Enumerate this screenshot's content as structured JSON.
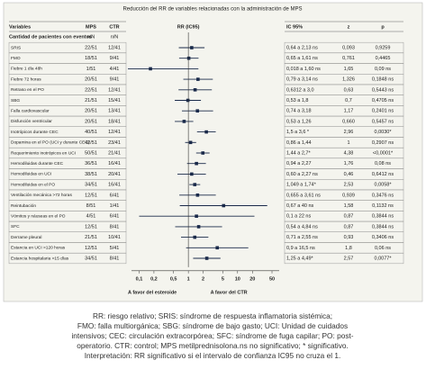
{
  "title": "Reducción del RR de variables relacionadas con la administración de MPS",
  "columns": [
    "Variables",
    "MPS",
    "CTR",
    "RR (IC95)",
    "IC 95%",
    "z",
    "p"
  ],
  "subheader": {
    "label": "Cantidad de pacientes con eventos",
    "mps": "n/N",
    "ctr": "n/N"
  },
  "rows": [
    {
      "label": "SRIS",
      "mps": "22/51",
      "ctr": "12/41",
      "ci_text": "0,64 a 2,13 ns",
      "z": "0,093",
      "p": "0,9259",
      "rr": 1.17,
      "lo": 0.64,
      "hi": 2.13
    },
    {
      "label": "FMO",
      "mps": "18/51",
      "ctr": "9/41",
      "ci_text": "0,65 a 1,61 ns",
      "z": "0,761",
      "p": "0,4465",
      "rr": 1.02,
      "lo": 0.65,
      "hi": 1.61
    },
    {
      "label": "Fiebre 1 día 48h",
      "mps": "1/51",
      "ctr": "4/41",
      "ci_text": "0,018 a 1,60 ns",
      "z": "1,65",
      "p": "0,09 ns",
      "rr": 0.17,
      "lo": 0.018,
      "hi": 1.6
    },
    {
      "label": "Fiebre 72 horas",
      "mps": "20/51",
      "ctr": "9/41",
      "ci_text": "0,79 a 3,14 ns",
      "z": "1,326",
      "p": "0,1848 ns",
      "rr": 1.57,
      "lo": 0.79,
      "hi": 3.14
    },
    {
      "label": "Retraso en el PO",
      "mps": "22/51",
      "ctr": "12/41",
      "ci_text": "0,6312 a 3,0",
      "z": "0,63",
      "p": "0,5443 ns",
      "rr": 1.37,
      "lo": 0.6312,
      "hi": 3.0
    },
    {
      "label": "SBG",
      "mps": "21/51",
      "ctr": "15/41",
      "ci_text": "0,53 a 1,8",
      "z": "0,7",
      "p": "0,4705 ns",
      "rr": 0.98,
      "lo": 0.53,
      "hi": 1.8
    },
    {
      "label": "Falla cardiovascular",
      "mps": "20/51",
      "ctr": "13/41",
      "ci_text": "0,74 a 3,18",
      "z": "1,17",
      "p": "0,2401 ns",
      "rr": 1.53,
      "lo": 0.74,
      "hi": 3.18
    },
    {
      "label": "Disfunción ventricular",
      "mps": "20/51",
      "ctr": "18/41",
      "ci_text": "0,53 a 1,26",
      "z": "0,660",
      "p": "0,5457 ns",
      "rr": 0.82,
      "lo": 0.53,
      "hi": 1.26
    },
    {
      "label": "Inotrópicos durante CEC",
      "mps": "40/51",
      "ctr": "12/41",
      "ci_text": "1,5 a 3,6 *",
      "z": "2,96",
      "p": "0,0030*",
      "rr": 2.32,
      "lo": 1.5,
      "hi": 3.6
    },
    {
      "label": "Dopamina en el PO (UCI y durante CEC)",
      "mps": "42/51",
      "ctr": "23/41",
      "ci_text": "0,86 a 1,44",
      "z": "1",
      "p": "0,2907 ns",
      "rr": 1.11,
      "lo": 0.86,
      "hi": 1.44
    },
    {
      "label": "Requerimiento inotrópicos en UCI",
      "mps": "50/51",
      "ctr": "21/41",
      "ci_text": "1,44 a 2,7*",
      "z": "4,38",
      "p": "<0,0001*",
      "rr": 1.97,
      "lo": 1.44,
      "hi": 2.7
    },
    {
      "label": "Hemodiluidas durante CEC",
      "mps": "36/51",
      "ctr": "16/41",
      "ci_text": "0,94 a 2,27",
      "z": "1,76",
      "p": "0,08 ns",
      "rr": 1.46,
      "lo": 0.94,
      "hi": 2.27
    },
    {
      "label": "Hemodiluidas en UCI",
      "mps": "38/51",
      "ctr": "20/41",
      "ci_text": "0,60 a 2,27 ns",
      "z": "0,46",
      "p": "0,6412 ns",
      "rr": 1.17,
      "lo": 0.6,
      "hi": 2.27
    },
    {
      "label": "Hemodiluidas en el PO",
      "mps": "34/51",
      "ctr": "16/41",
      "ci_text": "1,049 a 1,74*",
      "z": "2,53",
      "p": "0,0058*",
      "rr": 1.35,
      "lo": 1.049,
      "hi": 1.74
    },
    {
      "label": "Ventilación mecánica >72 horas",
      "mps": "12/51",
      "ctr": "6/41",
      "ci_text": "0,655 a 3,61 ns",
      "z": "0,939",
      "p": "0,3476 ns",
      "rr": 1.54,
      "lo": 0.655,
      "hi": 3.61
    },
    {
      "label": "Reintubación",
      "mps": "8/51",
      "ctr": "1/41",
      "ci_text": "0,67 a 40 ns",
      "z": "1,58",
      "p": "0,1132 ns",
      "rr": 5.2,
      "lo": 0.67,
      "hi": 40
    },
    {
      "label": "Vómitos y náuseas en el PO",
      "mps": "4/51",
      "ctr": "6/41",
      "ci_text": "0,1 a 22 ns",
      "z": "0,87",
      "p": "0,3844 ns",
      "rr": 1.46,
      "lo": 0.1,
      "hi": 22
    },
    {
      "label": "SFC",
      "mps": "12/51",
      "ctr": "8/41",
      "ci_text": "0,54 a 4,84 ns",
      "z": "0,87",
      "p": "0,3844 ns",
      "rr": 1.62,
      "lo": 0.54,
      "hi": 4.84
    },
    {
      "label": "Derrame pleural",
      "mps": "21/51",
      "ctr": "10/41",
      "ci_text": "0,71 a 2,55 ns",
      "z": "0,93",
      "p": "0,3406 ns",
      "rr": 1.35,
      "lo": 0.71,
      "hi": 2.55
    },
    {
      "label": "Estancia en UCI >120 horas",
      "mps": "12/51",
      "ctr": "5/41",
      "ci_text": "0,9 a 16,5 ns",
      "z": "1,8",
      "p": "0,06 ns",
      "rr": 3.86,
      "lo": 0.9,
      "hi": 16.5
    },
    {
      "label": "Estancia hospitalaria >15 días",
      "mps": "34/51",
      "ctr": "8/41",
      "ci_text": "1,25 a 4,49*",
      "z": "2,57",
      "p": "0,0077*",
      "rr": 2.37,
      "lo": 1.25,
      "hi": 4.49
    }
  ],
  "axis": {
    "xscale": "log",
    "xlim": [
      0.07,
      70
    ],
    "ref_line": 1,
    "xticks": [
      {
        "value": 0.1,
        "label": "0,1"
      },
      {
        "value": 0.2,
        "label": "0,2"
      },
      {
        "value": 0.5,
        "label": "0,5"
      },
      1,
      2,
      5,
      10,
      20,
      50
    ],
    "left_label": "A favor del esteroide",
    "right_label": "A favor del CTR"
  },
  "caption": [
    "RR: riesgo relativo; SRIS: síndrome de respuesta inflamatoria sistémica;",
    "FMO: falla multiorgánica; SBG: síndrome de bajo gasto; UCI: Unidad de cuidados",
    "intensivos; CEC: circulación extracorpórea; SFC: síndrome de fuga capilar; PO: post-",
    "operatorio. CTR: control; MPS metilprednisolona.ns no significativo; * significativo.",
    "Interpretación: RR significativo si el intervalo de confianza IC95 no cruza el 1."
  ]
}
